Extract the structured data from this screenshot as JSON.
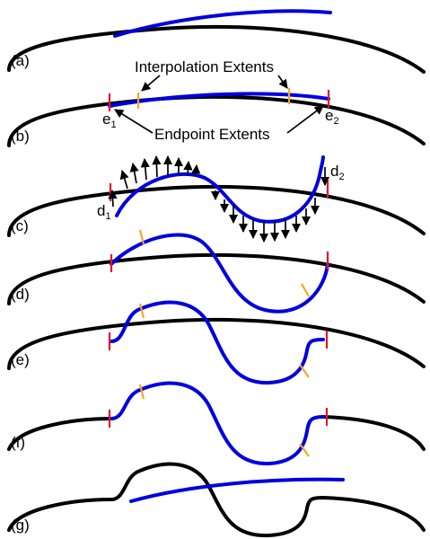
{
  "colors": {
    "curve": "#000000",
    "warped": "#0000dd",
    "endpoint_marker": "#e4142b",
    "interpolation_marker": "#f5a623"
  },
  "panels": [
    {
      "id": "a",
      "label": "(a)"
    },
    {
      "id": "b",
      "label": "(b)"
    },
    {
      "id": "c",
      "label": "(c)"
    },
    {
      "id": "d",
      "label": "(d)"
    },
    {
      "id": "e",
      "label": "(e)"
    },
    {
      "id": "f",
      "label": "(f)"
    },
    {
      "id": "g",
      "label": "(g)"
    }
  ],
  "annotations": {
    "interpolation_extents": "Interpolation Extents",
    "endpoint_extents": "Endpoint Extents",
    "e1": {
      "main": "e",
      "sub": "1"
    },
    "e2": {
      "main": "e",
      "sub": "2"
    },
    "d1": {
      "main": "d",
      "sub": "1"
    },
    "d2": {
      "main": "d",
      "sub": "2"
    }
  }
}
